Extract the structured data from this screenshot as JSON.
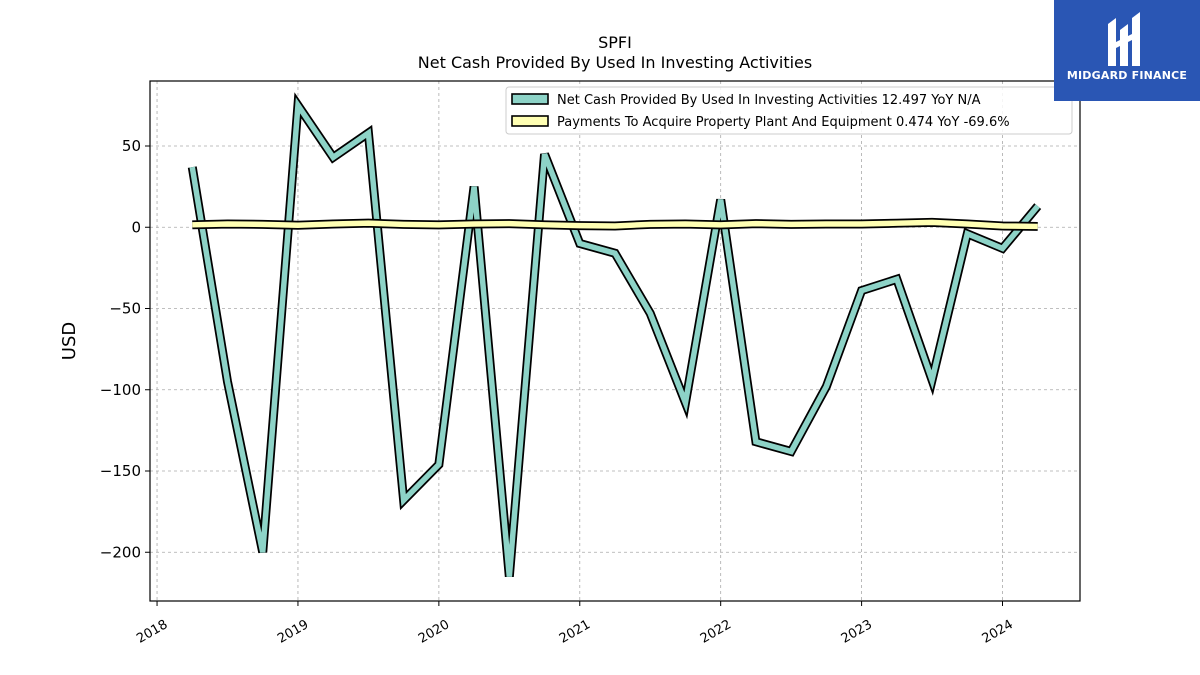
{
  "chart_data": {
    "type": "line",
    "title": "SPFI",
    "subtitle": "Net Cash Provided By Used In Investing Activities",
    "ylabel": "USD",
    "xlabel": "",
    "ylim": [
      -230,
      90
    ],
    "xlim": [
      2017.95,
      2024.55
    ],
    "yticks": [
      -200,
      -150,
      -100,
      -50,
      0,
      50
    ],
    "ytick_labels": [
      "−200",
      "−150",
      "−100",
      "−50",
      "0",
      "50"
    ],
    "xticks": [
      2018,
      2019,
      2020,
      2021,
      2022,
      2023,
      2024
    ],
    "xtick_labels": [
      "2018",
      "2019",
      "2020",
      "2021",
      "2022",
      "2023",
      "2024"
    ],
    "grid": true,
    "legend_position": "top-right",
    "series": [
      {
        "name": "Net Cash Provided By Used In Investing Activities",
        "legend_label": "Net Cash Provided By Used In Investing Activities  12.497 YoY N/A",
        "color": "#8dd3c7",
        "x": [
          2018.25,
          2018.5,
          2018.75,
          2019.0,
          2019.25,
          2019.5,
          2019.75,
          2020.0,
          2020.25,
          2020.5,
          2020.75,
          2021.0,
          2021.25,
          2021.5,
          2021.75,
          2022.0,
          2022.25,
          2022.5,
          2022.75,
          2023.0,
          2023.25,
          2023.5,
          2023.75,
          2024.0,
          2024.25
        ],
        "values": [
          37,
          -95,
          -200,
          75,
          43,
          58,
          -168,
          -146,
          25,
          -215,
          45,
          -10,
          -16,
          -53,
          -108,
          17,
          -132,
          -138,
          -98,
          -39,
          -32,
          -94,
          -4,
          -13,
          13
        ]
      },
      {
        "name": "Payments To Acquire Property Plant And Equipment",
        "legend_label": "Payments To Acquire Property Plant And Equipment  0.474 YoY -69.6%",
        "color": "#ffffb3",
        "x": [
          2018.25,
          2018.5,
          2018.75,
          2019.0,
          2019.25,
          2019.5,
          2019.75,
          2020.0,
          2020.25,
          2020.5,
          2020.75,
          2021.0,
          2021.25,
          2021.5,
          2021.75,
          2022.0,
          2022.25,
          2022.5,
          2022.75,
          2023.0,
          2023.25,
          2023.5,
          2023.75,
          2024.0,
          2024.25
        ],
        "values": [
          1.5,
          2.0,
          1.8,
          1.2,
          2.0,
          2.5,
          1.8,
          1.5,
          2.0,
          2.2,
          1.5,
          1.0,
          0.8,
          1.8,
          2.0,
          1.5,
          2.2,
          1.8,
          2.0,
          2.0,
          2.5,
          3.0,
          2.0,
          0.8,
          0.5
        ]
      }
    ]
  },
  "logo": {
    "text": "MIDGARD FINANCE",
    "background": "#2a56b4"
  }
}
